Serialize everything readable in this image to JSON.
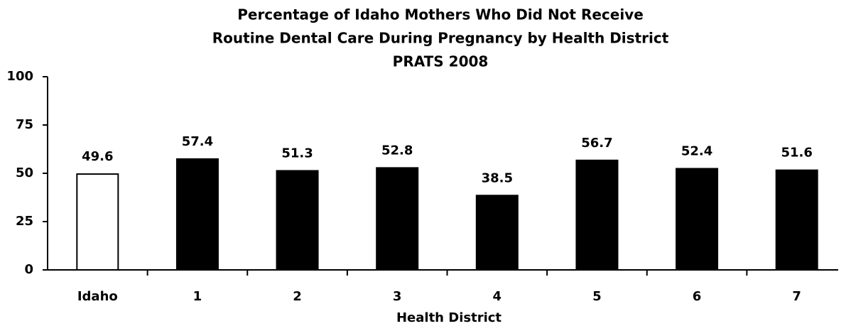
{
  "chart_data": {
    "type": "bar",
    "title": [
      "Percentage of Idaho Mothers Who Did Not Receive",
      "Routine Dental Care During Pregnancy by Health District",
      "PRATS 2008"
    ],
    "x_label": "Health District",
    "categories": [
      "Idaho",
      "1",
      "2",
      "3",
      "4",
      "5",
      "6",
      "7"
    ],
    "values": [
      49.6,
      57.4,
      51.3,
      52.8,
      38.5,
      56.7,
      52.4,
      51.6
    ],
    "colors": [
      "#ffffff",
      "#000000",
      "#000000",
      "#000000",
      "#000000",
      "#000000",
      "#000000",
      "#000000"
    ],
    "edge_color": "#000000",
    "ylim": [
      0,
      100
    ],
    "yticks": [
      0,
      25,
      50,
      75,
      100
    ],
    "grid": false
  }
}
